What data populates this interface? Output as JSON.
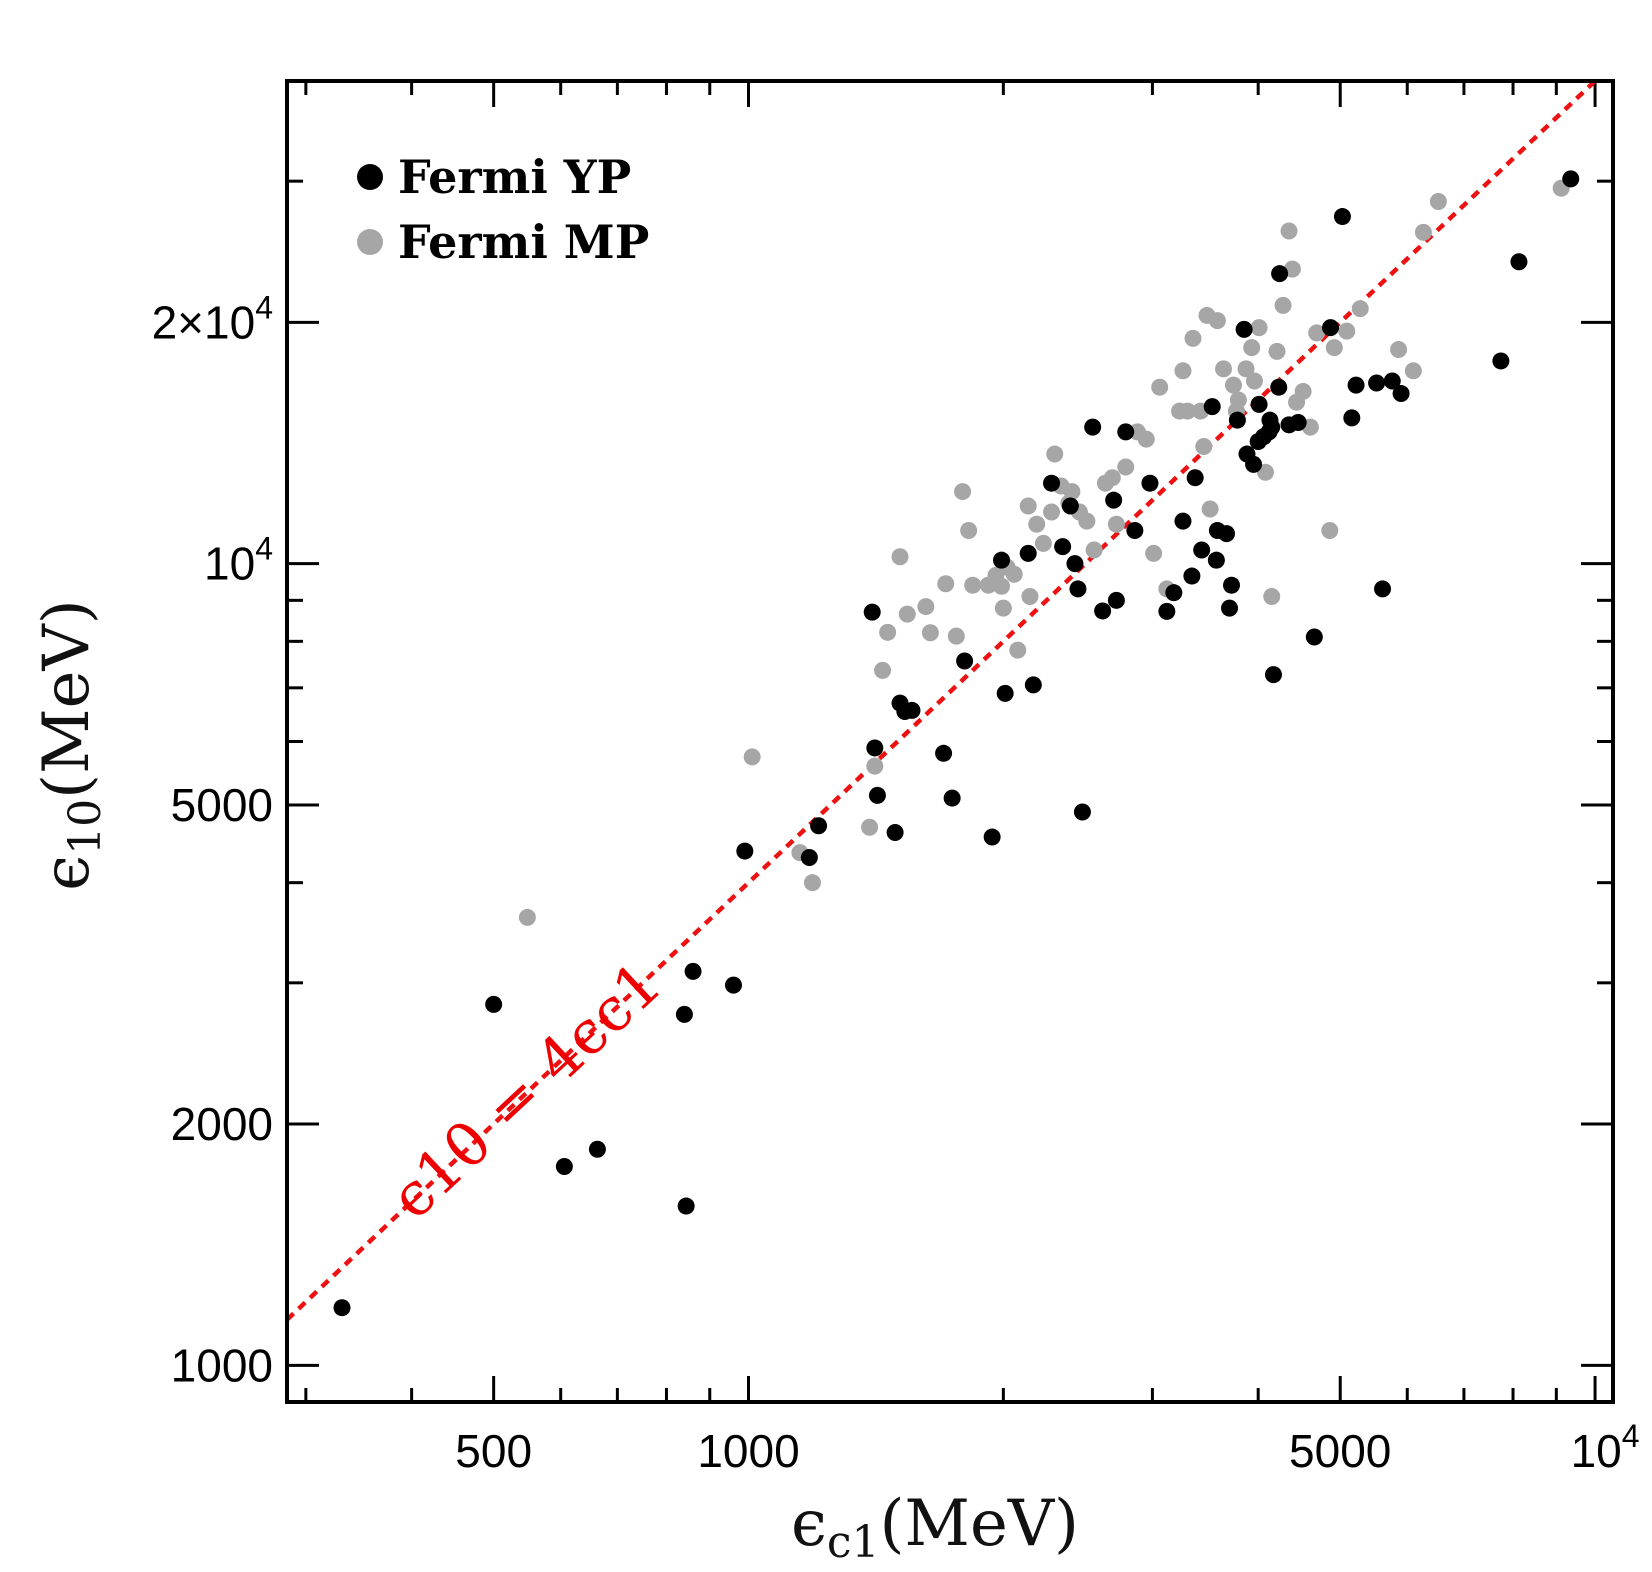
{
  "chart_data": {
    "type": "scatter",
    "xscale": "log",
    "yscale": "log",
    "xlim": [
      285,
      10500
    ],
    "ylim": [
      900,
      40000
    ],
    "x_ticks": [
      {
        "value": 500,
        "label": "500"
      },
      {
        "value": 1000,
        "label": "1000"
      },
      {
        "value": 5000,
        "label": "5000"
      },
      {
        "value": 10000,
        "label": "10",
        "exp": "4"
      }
    ],
    "y_ticks": [
      {
        "value": 1000,
        "label": "1000"
      },
      {
        "value": 2000,
        "label": "2000"
      },
      {
        "value": 5000,
        "label": "5000"
      },
      {
        "value": 10000,
        "label": "10",
        "exp": "4"
      },
      {
        "value": 20000,
        "label": "2×10",
        "exp": "4"
      }
    ],
    "xlabel": {
      "main": "ϵ",
      "sub": "c1",
      "unit": "(MeV)"
    },
    "ylabel": {
      "main": "ϵ",
      "sub": "10",
      "unit": "(MeV)"
    },
    "legend_position": "top-left",
    "reference_line": {
      "label": "ϵ10 = 4ϵc1",
      "factor": 4,
      "color": "#ee1111"
    },
    "colors": {
      "yp": "#000000",
      "mp": "#a6a6a6"
    },
    "series": [
      {
        "name": "Fermi YP",
        "color": "#000000",
        "points": [
          [
            331,
            1180
          ],
          [
            500,
            2820
          ],
          [
            606,
            1770
          ],
          [
            663,
            1860
          ],
          [
            840,
            2740
          ],
          [
            860,
            3100
          ],
          [
            844,
            1580
          ],
          [
            960,
            2980
          ],
          [
            990,
            4380
          ],
          [
            1180,
            4300
          ],
          [
            1210,
            4710
          ],
          [
            1400,
            8700
          ],
          [
            1410,
            5890
          ],
          [
            1420,
            5140
          ],
          [
            1490,
            4620
          ],
          [
            1510,
            6700
          ],
          [
            1530,
            6540
          ],
          [
            1560,
            6560
          ],
          [
            1700,
            5800
          ],
          [
            1740,
            5100
          ],
          [
            1800,
            7560
          ],
          [
            1940,
            4560
          ],
          [
            1990,
            10100
          ],
          [
            2010,
            6890
          ],
          [
            2140,
            10300
          ],
          [
            2170,
            7060
          ],
          [
            2280,
            12600
          ],
          [
            2350,
            10500
          ],
          [
            2400,
            11800
          ],
          [
            2430,
            10000
          ],
          [
            2450,
            9300
          ],
          [
            2480,
            4900
          ],
          [
            2550,
            14800
          ],
          [
            2620,
            8730
          ],
          [
            2700,
            12000
          ],
          [
            2720,
            9000
          ],
          [
            2790,
            14600
          ],
          [
            2860,
            11000
          ],
          [
            2980,
            12600
          ],
          [
            3120,
            8720
          ],
          [
            3180,
            9200
          ],
          [
            3260,
            11300
          ],
          [
            3340,
            9650
          ],
          [
            3370,
            12800
          ],
          [
            3430,
            10400
          ],
          [
            3530,
            15700
          ],
          [
            3570,
            10100
          ],
          [
            3580,
            11000
          ],
          [
            3670,
            10900
          ],
          [
            3700,
            8800
          ],
          [
            3720,
            9400
          ],
          [
            3780,
            15100
          ],
          [
            3850,
            19600
          ],
          [
            3880,
            13700
          ],
          [
            3950,
            13300
          ],
          [
            4000,
            14200
          ],
          [
            4010,
            15800
          ],
          [
            4060,
            14400
          ],
          [
            4120,
            14600
          ],
          [
            4130,
            15100
          ],
          [
            4150,
            14800
          ],
          [
            4170,
            7270
          ],
          [
            4230,
            16600
          ],
          [
            4240,
            23000
          ],
          [
            4350,
            14900
          ],
          [
            4460,
            15000
          ],
          [
            4660,
            8100
          ],
          [
            4870,
            19700
          ],
          [
            5030,
            27100
          ],
          [
            5160,
            15200
          ],
          [
            5220,
            16700
          ],
          [
            5520,
            16800
          ],
          [
            5610,
            9300
          ],
          [
            5760,
            16900
          ],
          [
            5900,
            16300
          ],
          [
            7740,
            17900
          ],
          [
            8130,
            23800
          ],
          [
            9360,
            30200
          ]
        ]
      },
      {
        "name": "Fermi MP",
        "color": "#a6a6a6",
        "points": [
          [
            548,
            3620
          ],
          [
            1010,
            5740
          ],
          [
            1150,
            4360
          ],
          [
            1190,
            4000
          ],
          [
            1390,
            4690
          ],
          [
            1410,
            5590
          ],
          [
            1440,
            7360
          ],
          [
            1460,
            8210
          ],
          [
            1510,
            10200
          ],
          [
            1540,
            8650
          ],
          [
            1620,
            8840
          ],
          [
            1640,
            8200
          ],
          [
            1710,
            9440
          ],
          [
            1760,
            8120
          ],
          [
            1790,
            12300
          ],
          [
            1820,
            11000
          ],
          [
            1840,
            9400
          ],
          [
            1920,
            9400
          ],
          [
            1960,
            9670
          ],
          [
            1990,
            9370
          ],
          [
            2000,
            8800
          ],
          [
            2020,
            9900
          ],
          [
            2060,
            9700
          ],
          [
            2080,
            7800
          ],
          [
            2140,
            11800
          ],
          [
            2150,
            9100
          ],
          [
            2190,
            11200
          ],
          [
            2230,
            10600
          ],
          [
            2280,
            11600
          ],
          [
            2300,
            13700
          ],
          [
            2340,
            12500
          ],
          [
            2390,
            11900
          ],
          [
            2410,
            12300
          ],
          [
            2460,
            11600
          ],
          [
            2510,
            11300
          ],
          [
            2560,
            10400
          ],
          [
            2640,
            12600
          ],
          [
            2690,
            12800
          ],
          [
            2720,
            11200
          ],
          [
            2790,
            13200
          ],
          [
            2880,
            14600
          ],
          [
            2950,
            14300
          ],
          [
            3010,
            10300
          ],
          [
            3060,
            16600
          ],
          [
            3120,
            9300
          ],
          [
            3230,
            15500
          ],
          [
            3260,
            17400
          ],
          [
            3300,
            15500
          ],
          [
            3350,
            19100
          ],
          [
            3420,
            15500
          ],
          [
            3450,
            14000
          ],
          [
            3480,
            20400
          ],
          [
            3510,
            11700
          ],
          [
            3580,
            20100
          ],
          [
            3640,
            17500
          ],
          [
            3740,
            16700
          ],
          [
            3770,
            15500
          ],
          [
            3790,
            16000
          ],
          [
            3870,
            17500
          ],
          [
            3930,
            18600
          ],
          [
            3960,
            16900
          ],
          [
            4010,
            19700
          ],
          [
            4080,
            13000
          ],
          [
            4150,
            9100
          ],
          [
            4210,
            18400
          ],
          [
            4280,
            21000
          ],
          [
            4350,
            26000
          ],
          [
            4390,
            23300
          ],
          [
            4440,
            15900
          ],
          [
            4520,
            16400
          ],
          [
            4610,
            14800
          ],
          [
            4690,
            19400
          ],
          [
            4860,
            11000
          ],
          [
            4920,
            18600
          ],
          [
            5090,
            19500
          ],
          [
            5280,
            20800
          ],
          [
            5860,
            18500
          ],
          [
            6100,
            17400
          ],
          [
            6270,
            25900
          ],
          [
            6530,
            28300
          ],
          [
            9120,
            29400
          ]
        ]
      }
    ]
  }
}
